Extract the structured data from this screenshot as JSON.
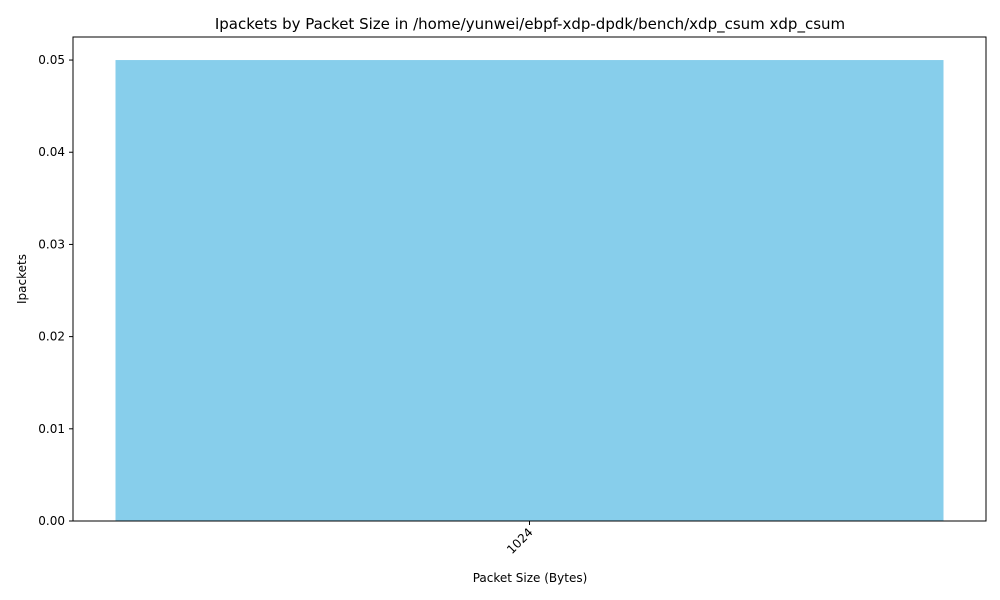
{
  "chart_data": {
    "type": "bar",
    "title": "Ipackets by Packet Size in /home/yunwei/ebpf-xdp-dpdk/bench/xdp_csum xdp_csum",
    "xlabel": "Packet Size (Bytes)",
    "ylabel": "Ipackets",
    "categories": [
      "1024"
    ],
    "values": [
      0.05
    ],
    "ylim": [
      0,
      0.0525
    ],
    "yticks": [
      0.0,
      0.01,
      0.02,
      0.03,
      0.04,
      0.05
    ],
    "ytick_labels": [
      "0.00",
      "0.01",
      "0.02",
      "0.03",
      "0.04",
      "0.05"
    ],
    "bar_color": "#87CEEB",
    "grid": false,
    "legend": "none",
    "xtick_rotation": "45"
  }
}
